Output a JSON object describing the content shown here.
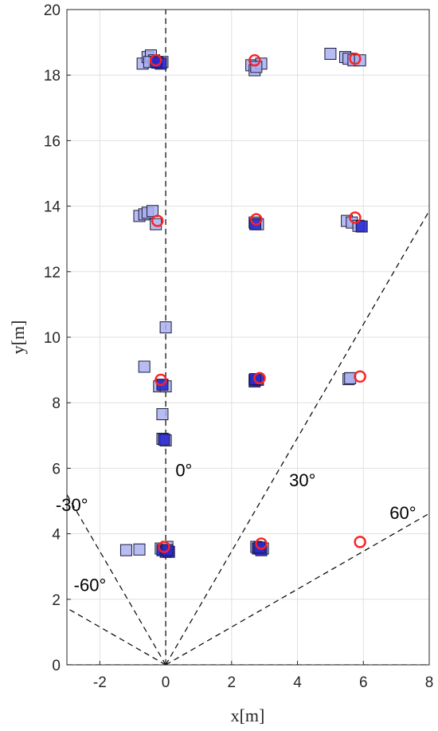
{
  "chart_data": {
    "type": "scatter",
    "title": "",
    "xlabel": "x[m]",
    "ylabel": "y[m]",
    "xlim": [
      -3,
      8
    ],
    "ylim": [
      0,
      20
    ],
    "xticks": [
      -2,
      0,
      2,
      4,
      6,
      8
    ],
    "yticks": [
      0,
      2,
      4,
      6,
      8,
      10,
      12,
      14,
      16,
      18,
      20
    ],
    "xtick_labels": [
      "-2",
      "0",
      "2",
      "4",
      "6",
      "8"
    ],
    "ytick_labels": [
      "0",
      "2",
      "4",
      "6",
      "8",
      "10",
      "12",
      "14",
      "16",
      "18",
      "20"
    ],
    "grid": true,
    "colors": {
      "estimate_light": "#aab0f0",
      "estimate_dark": "#2a2ad0",
      "truth": "#ff2020",
      "grid": "#e0e0e0",
      "reference_line": "#000000"
    },
    "reference_lines": [
      {
        "label": "0°",
        "angle_deg": 0,
        "label_at": [
          0.55,
          5.75
        ]
      },
      {
        "label": "30°",
        "angle_deg": 30,
        "label_at": [
          4.15,
          5.45
        ]
      },
      {
        "label": "60°",
        "angle_deg": 60,
        "label_at": [
          7.2,
          4.45
        ]
      },
      {
        "label": "-30°",
        "angle_deg": -30,
        "label_at": [
          -2.85,
          4.7
        ]
      },
      {
        "label": "-60°",
        "angle_deg": -60,
        "label_at": [
          -2.3,
          2.25
        ]
      }
    ],
    "series": [
      {
        "marker": "circle",
        "style": "truth",
        "points": [
          [
            -0.3,
            18.45
          ],
          [
            2.7,
            18.45
          ],
          [
            5.75,
            18.5
          ],
          [
            -0.25,
            13.55
          ],
          [
            2.75,
            13.6
          ],
          [
            5.75,
            13.65
          ],
          [
            -0.15,
            8.7
          ],
          [
            2.85,
            8.75
          ],
          [
            5.9,
            8.8
          ],
          [
            -0.05,
            3.6
          ],
          [
            2.9,
            3.7
          ],
          [
            5.9,
            3.75
          ]
        ]
      },
      {
        "marker": "square",
        "style": "estimate_light",
        "points": [
          [
            -0.7,
            18.35
          ],
          [
            -0.55,
            18.55
          ],
          [
            -0.45,
            18.6
          ],
          [
            -0.35,
            18.45
          ],
          [
            -0.5,
            18.4
          ],
          [
            -0.1,
            18.4
          ],
          [
            2.6,
            18.3
          ],
          [
            2.7,
            18.15
          ],
          [
            2.9,
            18.35
          ],
          [
            2.75,
            18.25
          ],
          [
            5.0,
            18.65
          ],
          [
            5.45,
            18.55
          ],
          [
            5.55,
            18.5
          ],
          [
            5.7,
            18.45
          ],
          [
            5.9,
            18.45
          ],
          [
            -0.8,
            13.7
          ],
          [
            -0.65,
            13.75
          ],
          [
            -0.55,
            13.8
          ],
          [
            -0.4,
            13.85
          ],
          [
            -0.3,
            13.45
          ],
          [
            2.7,
            13.5
          ],
          [
            2.8,
            13.45
          ],
          [
            5.5,
            13.55
          ],
          [
            5.65,
            13.5
          ],
          [
            5.85,
            13.4
          ],
          [
            -0.65,
            9.1
          ],
          [
            0.0,
            10.3
          ],
          [
            -0.1,
            7.65
          ],
          [
            -0.2,
            8.5
          ],
          [
            0.0,
            8.5
          ],
          [
            -0.1,
            6.9
          ],
          [
            0.0,
            6.85
          ],
          [
            -1.2,
            3.5
          ],
          [
            -0.8,
            3.52
          ],
          [
            -0.15,
            3.55
          ],
          [
            0.05,
            3.6
          ],
          [
            2.75,
            3.6
          ],
          [
            2.95,
            3.55
          ],
          [
            5.55,
            8.72
          ],
          [
            5.6,
            8.75
          ],
          [
            2.7,
            8.7
          ]
        ]
      },
      {
        "marker": "square",
        "style": "estimate_dark",
        "points": [
          [
            -0.25,
            18.38
          ],
          [
            -0.15,
            18.35
          ],
          [
            -0.3,
            18.4
          ],
          [
            2.72,
            13.45
          ],
          [
            5.95,
            13.38
          ],
          [
            -0.1,
            8.55
          ],
          [
            2.7,
            8.65
          ],
          [
            2.8,
            8.7
          ],
          [
            2.72,
            8.72
          ],
          [
            -0.05,
            6.88
          ],
          [
            -0.1,
            3.5
          ],
          [
            0.0,
            3.45
          ],
          [
            0.1,
            3.45
          ],
          [
            0.05,
            3.5
          ],
          [
            2.8,
            3.55
          ],
          [
            2.9,
            3.5
          ],
          [
            2.85,
            3.58
          ]
        ]
      }
    ]
  }
}
